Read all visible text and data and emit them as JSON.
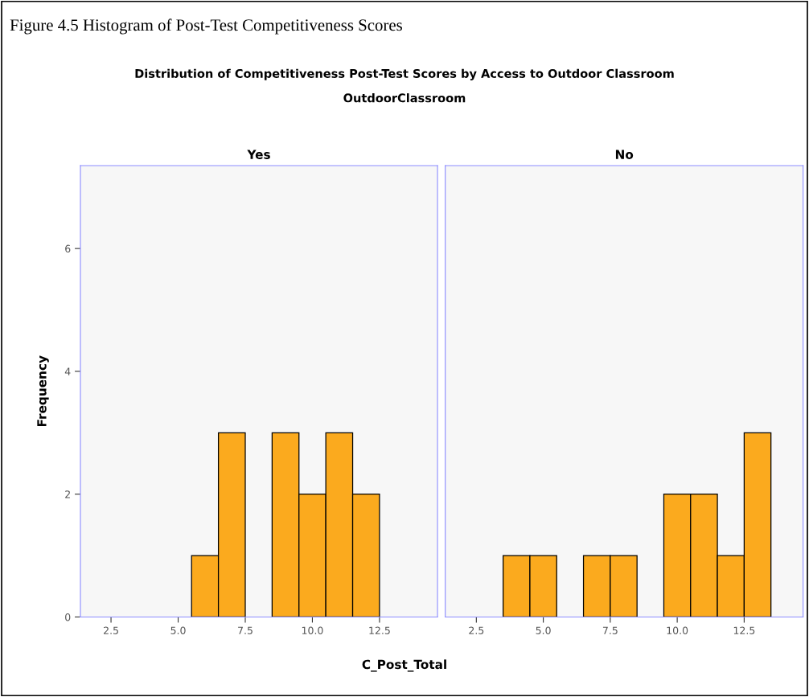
{
  "chart_data": [
    {
      "type": "histogram",
      "title": "Yes",
      "annotations": [
        "Figure 4.5 Histogram of Post-Test Competitiveness Scores",
        "Distribution of Competitiveness Post-Test Scores by Access to Outdoor Classroom",
        "OutdoorClassroom"
      ],
      "xlabel": "C_Post_Total",
      "ylabel": "Frequency",
      "color": "#fbaa1e",
      "bins": [
        5.5,
        6.5,
        7.5,
        8.5,
        9.5,
        10.5,
        11.5,
        12.5
      ],
      "values": [
        1,
        3,
        0,
        3,
        2,
        3,
        2
      ],
      "xlim": [
        1.36,
        14.66
      ],
      "xticks": [
        {
          "value": 2.5,
          "label": "2.5"
        },
        {
          "value": 5.0,
          "label": "5.0"
        },
        {
          "value": 7.5,
          "label": "7.5"
        },
        {
          "value": 10.0,
          "label": "10.0"
        },
        {
          "value": 12.5,
          "label": "12.5"
        }
      ],
      "ylim": [
        0,
        7.35
      ],
      "yticks": [
        0,
        2,
        4,
        6
      ],
      "grid": false
    },
    {
      "type": "histogram",
      "title": "No",
      "color": "#fbaa1e",
      "bins": [
        3.5,
        4.5,
        5.5,
        6.5,
        7.5,
        8.5,
        9.5,
        10.5,
        11.5,
        12.5,
        13.5
      ],
      "values": [
        1,
        1,
        0,
        1,
        1,
        0,
        2,
        2,
        1,
        3
      ],
      "xlim": [
        1.34,
        14.7
      ],
      "xticks": [
        {
          "value": 2.5,
          "label": "2.5"
        },
        {
          "value": 5.0,
          "label": "5.0"
        },
        {
          "value": 7.5,
          "label": "7.5"
        },
        {
          "value": 10.0,
          "label": "10.0"
        },
        {
          "value": 12.5,
          "label": "12.5"
        }
      ],
      "ylim": [
        0,
        7.35
      ],
      "yticks": [
        0,
        2,
        4,
        6
      ],
      "tick_labels": "x",
      "grid": false
    }
  ]
}
